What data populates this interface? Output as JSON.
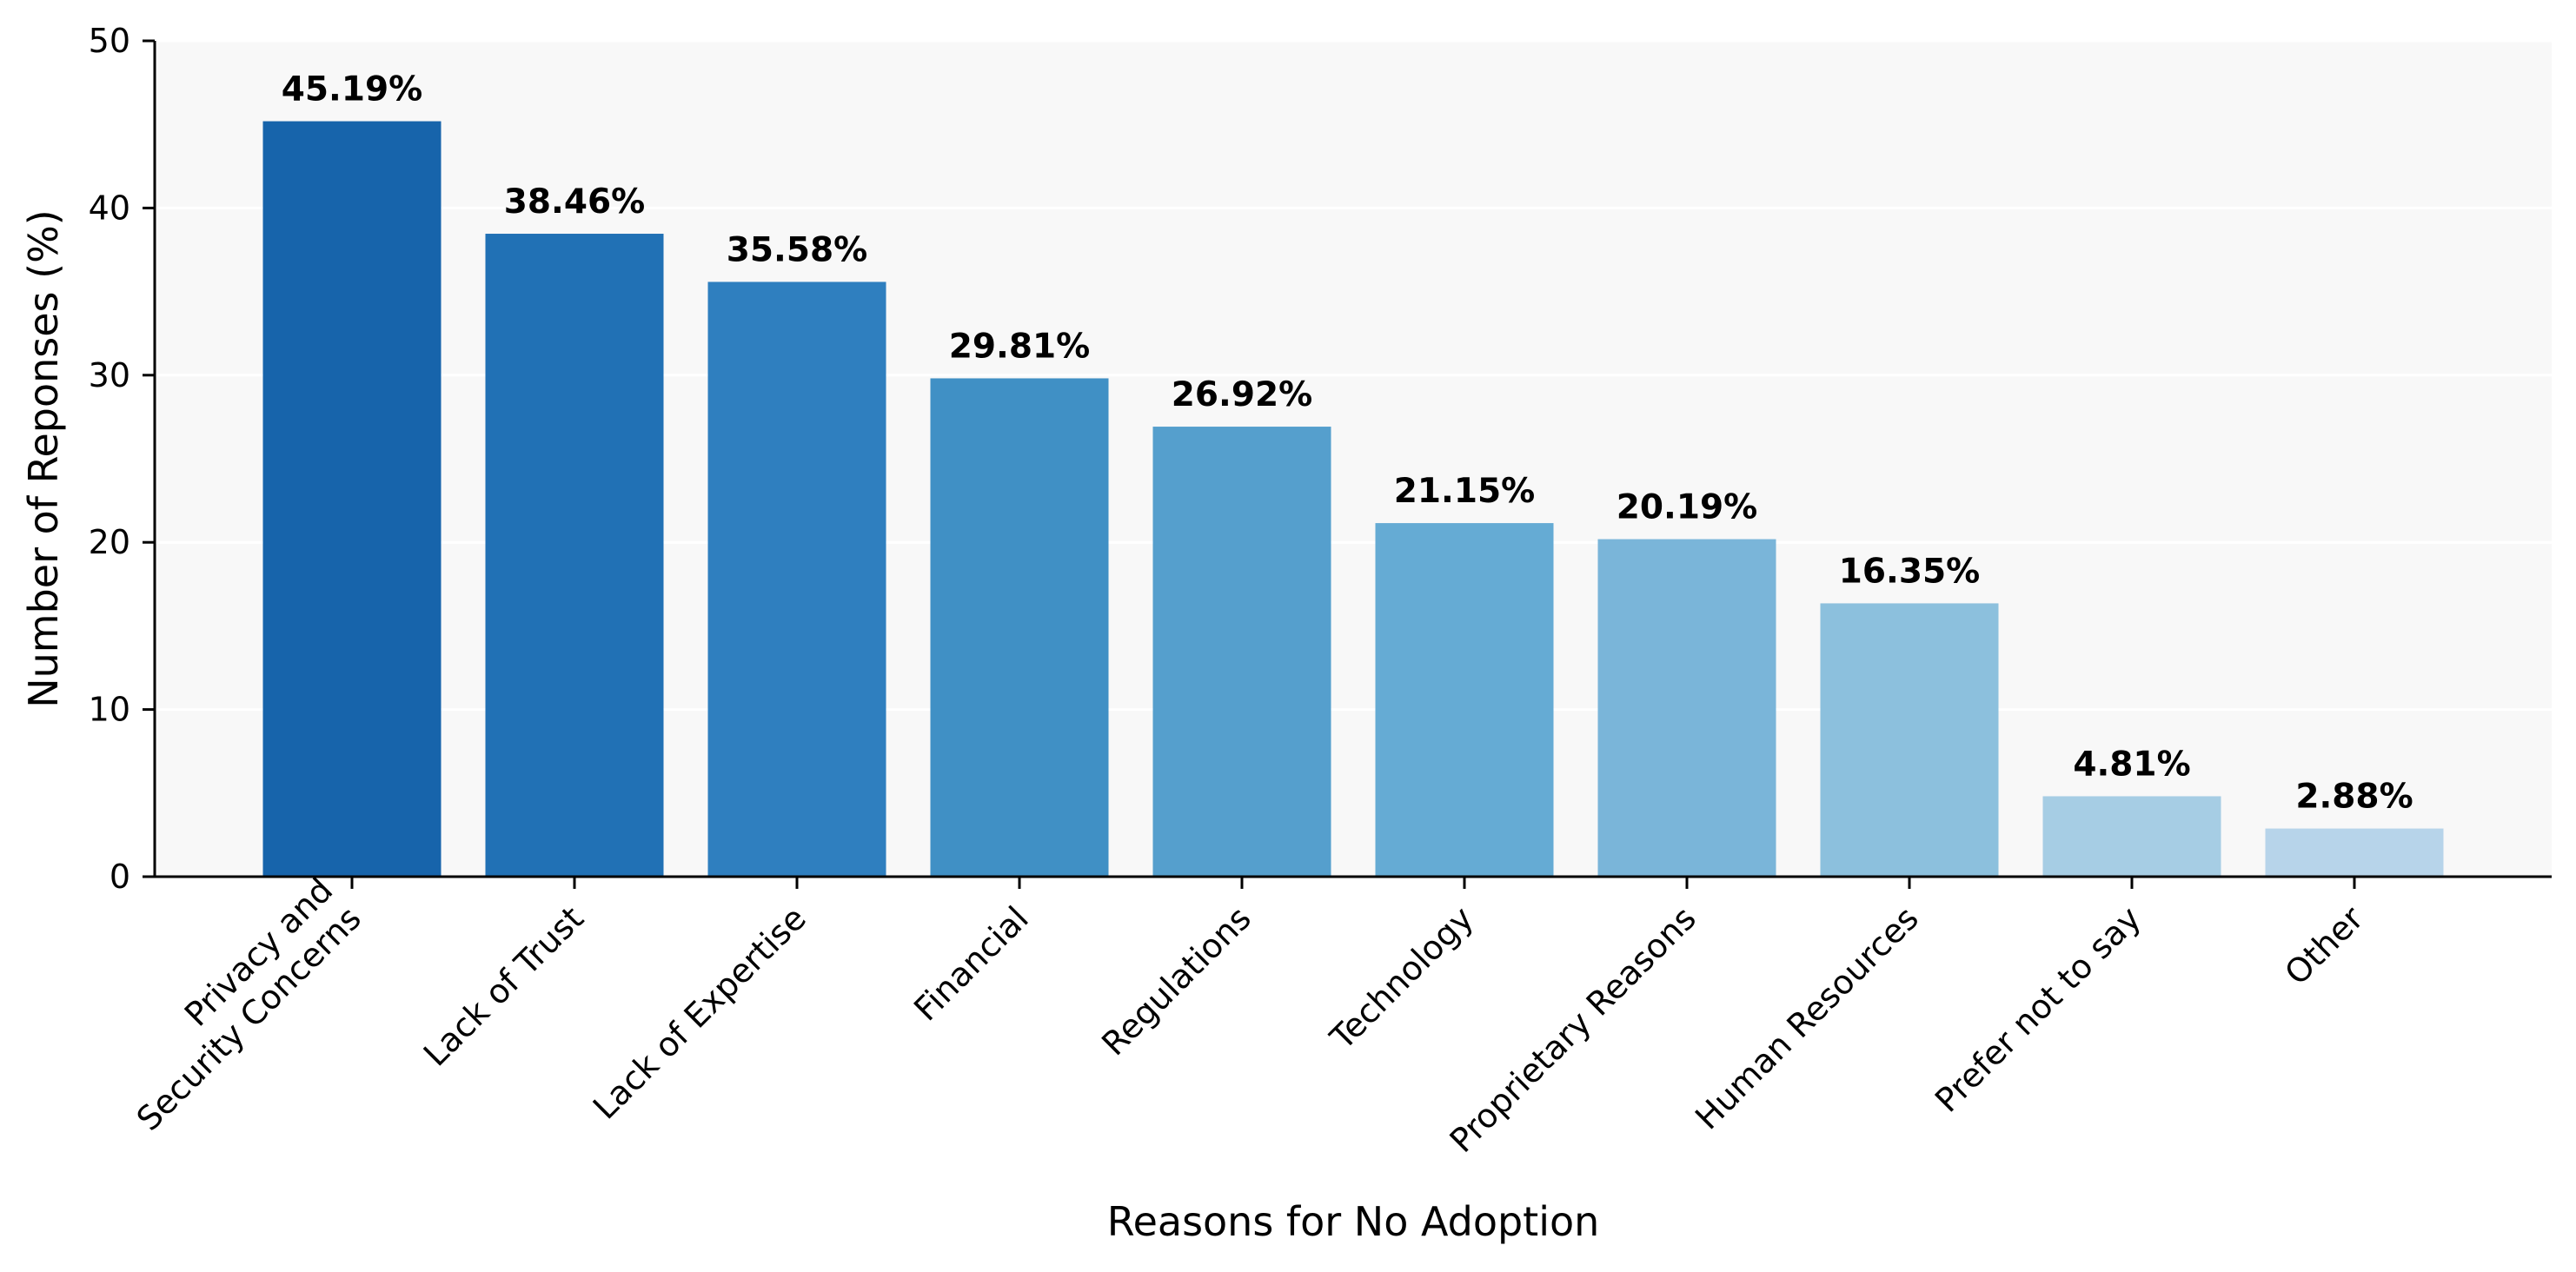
{
  "chart_data": {
    "type": "bar",
    "categories": [
      "Privacy and\nSecurity Concerns",
      "Lack of Trust",
      "Lack of Expertise",
      "Financial",
      "Regulations",
      "Technology",
      "Proprietary Reasons",
      "Human Resources",
      "Prefer not to say",
      "Other"
    ],
    "values": [
      45.19,
      38.46,
      35.58,
      29.81,
      26.92,
      21.15,
      20.19,
      16.35,
      4.81,
      2.88
    ],
    "value_labels": [
      "45.19%",
      "38.46%",
      "35.58%",
      "29.81%",
      "26.92%",
      "21.15%",
      "20.19%",
      "16.35%",
      "4.81%",
      "2.88%"
    ],
    "bar_colors": [
      "#1764ab",
      "#2171b5",
      "#2f7fbf",
      "#4090c5",
      "#559fcd",
      "#65abd4",
      "#7ab5d9",
      "#8cc0dd",
      "#a6cde4",
      "#b7d4ea"
    ],
    "title": "",
    "xlabel": "Reasons for No Adoption",
    "ylabel": "Number of Reponses (%)",
    "ylim": [
      0,
      50
    ],
    "yticks": [
      0,
      10,
      20,
      30,
      40,
      50
    ],
    "grid": "horizontal, faint",
    "plot_background": "#f8f8f8",
    "legend": "none"
  }
}
